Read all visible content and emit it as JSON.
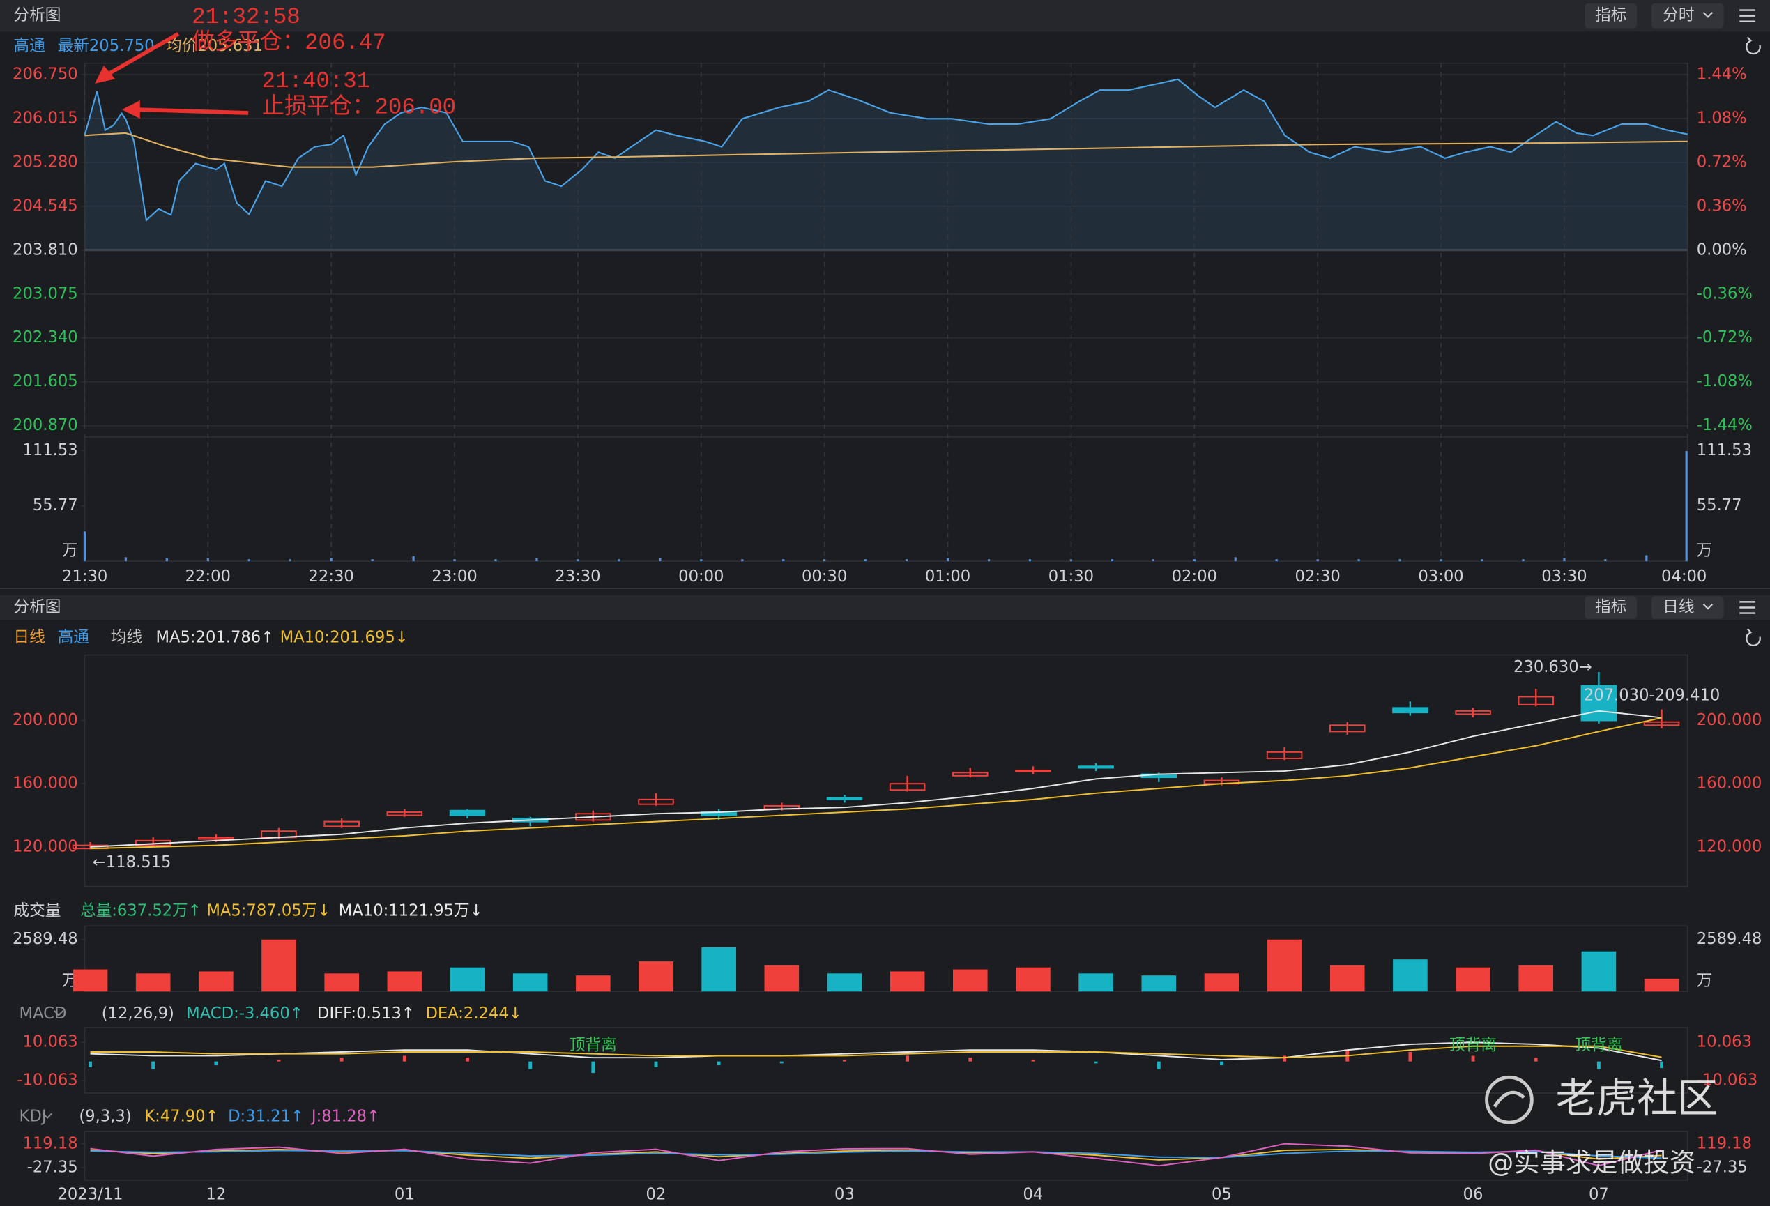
{
  "top_panel": {
    "title": "分析图",
    "buttons": [
      "指标",
      "分时"
    ],
    "legend": [
      {
        "text": "高通",
        "color": "#3d9be9"
      },
      {
        "text": "最新205.750",
        "color": "#3d9be9"
      },
      {
        "text": "均价205.631",
        "color": "#e0b062"
      }
    ],
    "annotations": [
      "21:32:58",
      "做多平仓：206.47",
      "21:40:31",
      "止损平仓：206.00"
    ]
  },
  "bottom_panel": {
    "title": "分析图",
    "buttons": [
      "指标",
      "日线"
    ],
    "legend": [
      {
        "text": "日线",
        "color": "#f0a030"
      },
      {
        "text": "高通",
        "color": "#3d9be9"
      },
      {
        "text": "均线",
        "color": "#c8c8c8"
      },
      {
        "text": "MA5:201.786↑",
        "color": "#e8e8e8"
      },
      {
        "text": "MA10:201.695↓",
        "color": "#f0c030"
      }
    ]
  },
  "watermark": {
    "brand": "老虎社区",
    "author": "@实事求是做投资"
  },
  "chart_data": [
    {
      "type": "line",
      "xlim": [
        0,
        390
      ],
      "xticks": [
        {
          "value": 0,
          "label": "21:30"
        },
        {
          "value": 30,
          "label": "22:00"
        },
        {
          "value": 60,
          "label": "22:30"
        },
        {
          "value": 90,
          "label": "23:00"
        },
        {
          "value": 120,
          "label": "23:30"
        },
        {
          "value": 150,
          "label": "00:00"
        },
        {
          "value": 180,
          "label": "00:30"
        },
        {
          "value": 210,
          "label": "01:00"
        },
        {
          "value": 240,
          "label": "01:30"
        },
        {
          "value": 270,
          "label": "02:00"
        },
        {
          "value": 300,
          "label": "02:30"
        },
        {
          "value": 330,
          "label": "03:00"
        },
        {
          "value": 360,
          "label": "03:30"
        },
        {
          "value": 390,
          "label": "04:00"
        }
      ],
      "ylim": [
        200.87,
        206.75
      ],
      "yticks": [
        {
          "value": 200.87,
          "label": "200.870"
        },
        {
          "value": 201.605,
          "label": "201.605"
        },
        {
          "value": 202.34,
          "label": "202.340"
        },
        {
          "value": 203.075,
          "label": "203.075"
        },
        {
          "value": 203.81,
          "label": "203.810"
        },
        {
          "value": 204.545,
          "label": "204.545"
        },
        {
          "value": 205.28,
          "label": "205.280"
        },
        {
          "value": 206.015,
          "label": "206.015"
        },
        {
          "value": 206.75,
          "label": "206.750"
        }
      ],
      "y2lim": [
        -1.44,
        1.44
      ],
      "y2ticks": [
        {
          "value": -1.44,
          "label": "-1.44%"
        },
        {
          "value": -1.08,
          "label": "-1.08%"
        },
        {
          "value": -0.72,
          "label": "-0.72%"
        },
        {
          "value": -0.36,
          "label": "-0.36%"
        },
        {
          "value": 0,
          "label": "0.00%"
        },
        {
          "value": 0.36,
          "label": "0.36%"
        },
        {
          "value": 0.72,
          "label": "0.72%"
        },
        {
          "value": 1.08,
          "label": "1.08%"
        },
        {
          "value": 1.44,
          "label": "1.44%"
        }
      ],
      "grid": true,
      "area": true,
      "series": [
        {
          "color": "#4aa3e8",
          "x": [
            0,
            3,
            5,
            7,
            9,
            10,
            12,
            15,
            18,
            21,
            23,
            27,
            32,
            34,
            37,
            40,
            44,
            48,
            52,
            56,
            60,
            63,
            66,
            69,
            73,
            77,
            82,
            88,
            92,
            98,
            104,
            108,
            112,
            116,
            121,
            125,
            129,
            133,
            139,
            144,
            151,
            155,
            160,
            169,
            176,
            181,
            188,
            196,
            205,
            211,
            220,
            227,
            235,
            242,
            247,
            254,
            260,
            266,
            271,
            275,
            282,
            287,
            292,
            298,
            303,
            309,
            317,
            325,
            331,
            336,
            342,
            347,
            353,
            358,
            363,
            367,
            374,
            380,
            385,
            390
          ],
          "values": [
            205.73,
            206.47,
            205.82,
            205.9,
            206.1,
            206.0,
            205.63,
            204.31,
            204.5,
            204.4,
            204.97,
            205.26,
            205.16,
            205.26,
            204.6,
            204.41,
            204.97,
            204.88,
            205.35,
            205.54,
            205.58,
            205.73,
            205.07,
            205.54,
            205.92,
            206.11,
            206.2,
            206.11,
            205.63,
            205.63,
            205.63,
            205.54,
            204.97,
            204.88,
            205.16,
            205.45,
            205.35,
            205.54,
            205.82,
            205.73,
            205.63,
            205.54,
            206.01,
            206.2,
            206.3,
            206.49,
            206.33,
            206.11,
            206.01,
            206.01,
            205.92,
            205.92,
            206.01,
            206.3,
            206.49,
            206.49,
            206.58,
            206.67,
            206.39,
            206.2,
            206.49,
            206.3,
            205.73,
            205.45,
            205.35,
            205.54,
            205.45,
            205.54,
            205.35,
            205.45,
            205.54,
            205.45,
            205.73,
            205.96,
            205.77,
            205.73,
            205.92,
            205.92,
            205.82,
            205.75
          ]
        },
        {
          "color": "#e0b062",
          "x": [
            0,
            10,
            20,
            30,
            50,
            70,
            90,
            110,
            130,
            160,
            200,
            250,
            300,
            350,
            390
          ],
          "values": [
            205.73,
            205.77,
            205.54,
            205.35,
            205.2,
            205.2,
            205.29,
            205.35,
            205.37,
            205.41,
            205.46,
            205.52,
            205.58,
            205.6,
            205.631
          ]
        }
      ]
    },
    {
      "type": "bar",
      "color": "#5b8fd6",
      "unit": "万",
      "xlim": [
        0,
        390
      ],
      "x": [
        0,
        10,
        20,
        30,
        40,
        50,
        60,
        70,
        80,
        90,
        100,
        110,
        120,
        130,
        140,
        150,
        160,
        170,
        180,
        190,
        200,
        210,
        220,
        230,
        240,
        250,
        260,
        270,
        280,
        290,
        300,
        310,
        320,
        330,
        340,
        350,
        360,
        370,
        380,
        390
      ],
      "values": [
        30,
        4,
        3,
        3,
        2,
        2,
        3,
        2,
        5,
        2,
        2,
        3,
        2,
        2,
        3,
        2,
        2,
        2,
        2,
        2,
        2,
        3,
        2,
        2,
        2,
        2,
        2,
        2,
        4,
        2,
        2,
        2,
        2,
        2,
        2,
        2,
        3,
        2,
        6,
        111
      ],
      "ylim": [
        0,
        119.5
      ],
      "yticks": [
        55.77,
        111.53
      ]
    },
    {
      "type": "candlestick",
      "categories": [
        "2023/11",
        null,
        "12",
        null,
        null,
        "01",
        null,
        null,
        null,
        "02",
        null,
        null,
        "03",
        null,
        null,
        "04",
        null,
        null,
        "05",
        null,
        null,
        null,
        "06",
        null,
        "07",
        null
      ],
      "open": [
        119,
        121,
        125,
        126,
        133,
        140,
        143,
        138,
        137,
        147,
        142,
        144,
        151,
        156,
        165,
        168,
        171,
        166,
        160,
        176,
        193,
        208,
        204,
        210,
        222,
        197
      ],
      "high": [
        123,
        126,
        128,
        132,
        138,
        144,
        144,
        139,
        143,
        154,
        144,
        148,
        153,
        165,
        170,
        171,
        173,
        167,
        164,
        183,
        199,
        212,
        208,
        220,
        230.63,
        207
      ],
      "low": [
        118.515,
        120,
        123,
        125,
        132,
        139,
        138,
        133,
        136,
        146,
        137,
        143,
        148,
        155,
        164,
        166,
        168,
        161,
        159,
        175,
        191,
        203,
        202,
        209,
        198,
        195
      ],
      "close": [
        121,
        124,
        126,
        130,
        136,
        142,
        140,
        136,
        141,
        150,
        140,
        146,
        150,
        160,
        167,
        168.5,
        170,
        164,
        162,
        180,
        197,
        205,
        206,
        215,
        200,
        199
      ],
      "up_color": "#f0403c",
      "down_color": "#17b3c4",
      "series": [
        {
          "color": "#e8e8e8",
          "values": [
            120,
            122,
            124,
            126,
            128,
            132,
            135,
            137,
            139,
            141,
            142,
            144,
            145,
            148,
            152,
            157,
            163,
            166,
            167,
            168,
            172,
            180,
            190,
            198,
            206,
            201.786
          ]
        },
        {
          "color": "#f0c030",
          "values": [
            119,
            120,
            121,
            123,
            125,
            127,
            130,
            132,
            134,
            136,
            138,
            140,
            142,
            144,
            147,
            150,
            154,
            157,
            160,
            162,
            165,
            170,
            177,
            184,
            193,
            201.695
          ]
        }
      ],
      "ylim": [
        95,
        234.3
      ],
      "yticks": [
        {
          "value": 120,
          "label": "120.000"
        },
        {
          "value": 160,
          "label": "160.000"
        },
        {
          "value": 200,
          "label": "200.000"
        }
      ],
      "high_label": "230.630→",
      "low_label": "←118.515",
      "range_label": "207.030-209.410"
    },
    {
      "type": "bar",
      "unit": "万",
      "legend": [
        {
          "text": "成交量",
          "color": "#cfd1d6"
        },
        {
          "text": "总量:637.52万↑",
          "color": "#2fc07a"
        },
        {
          "text": "MA5:787.05万↓",
          "color": "#f0c030"
        },
        {
          "text": "MA10:1121.95万↓",
          "color": "#e8e8e8"
        }
      ],
      "values": [
        1100,
        900,
        1000,
        2589,
        900,
        1000,
        1200,
        900,
        800,
        1500,
        2200,
        1300,
        900,
        1000,
        1100,
        1200,
        900,
        800,
        900,
        2589,
        1300,
        1600,
        1200,
        1300,
        2000,
        637.52
      ],
      "ylim": [
        0,
        3152
      ],
      "yticks": [
        2589.48
      ]
    },
    {
      "type": "macd",
      "legend": [
        {
          "text": "MACD",
          "color": "#8a8d94"
        },
        {
          "text": "(12,26,9)",
          "color": "#cfd1d6"
        },
        {
          "text": "MACD:-3.460↑",
          "color": "#2fc0b0"
        },
        {
          "text": "DIFF:0.513↑",
          "color": "#e8e8e8"
        },
        {
          "text": "DEA:2.244↓",
          "color": "#f0c030"
        }
      ],
      "values": [
        -3,
        -4,
        -2,
        1,
        2,
        3,
        2,
        -4,
        -6,
        -3,
        -2,
        -1,
        1,
        3,
        2,
        1,
        -1,
        -4,
        -2,
        3,
        6,
        5,
        3,
        2,
        -4,
        -3.46
      ],
      "series": [
        {
          "color": "#e8e8e8",
          "values": [
            4,
            3,
            3,
            4,
            5,
            6,
            6,
            4,
            2,
            2,
            3,
            3,
            4,
            5,
            6,
            6,
            5,
            3,
            1,
            2,
            6,
            9,
            10,
            9,
            7,
            0.513
          ]
        },
        {
          "color": "#f0c030",
          "values": [
            5,
            5,
            4,
            4,
            4,
            5,
            5,
            5,
            4,
            3,
            3,
            3,
            3,
            4,
            5,
            5,
            5,
            4,
            3,
            2,
            3,
            6,
            8,
            8,
            8,
            2.244
          ]
        }
      ],
      "annotations": [
        "顶背离",
        "顶背离",
        "顶背离"
      ],
      "ylim": [
        -16.57,
        16.57
      ],
      "yticks": [
        -10.063,
        10.063
      ]
    },
    {
      "type": "line",
      "legend": [
        {
          "text": "KDJ",
          "color": "#8a8d94"
        },
        {
          "text": "(9,3,3)",
          "color": "#cfd1d6"
        },
        {
          "text": "K:47.90↑",
          "color": "#f0c030"
        },
        {
          "text": "D:31.21↑",
          "color": "#3d9be9"
        },
        {
          "text": "J:81.28↑",
          "color": "#e060c0"
        }
      ],
      "series": [
        {
          "color": "#f0c030",
          "values": [
            80,
            60,
            75,
            85,
            70,
            80,
            50,
            30,
            55,
            70,
            40,
            60,
            75,
            80,
            65,
            70,
            50,
            20,
            35,
            80,
            85,
            70,
            65,
            75,
            25,
            47.9
          ]
        },
        {
          "color": "#3d9be9",
          "values": [
            75,
            68,
            70,
            78,
            75,
            77,
            62,
            45,
            50,
            62,
            52,
            55,
            68,
            75,
            70,
            70,
            60,
            38,
            35,
            60,
            75,
            73,
            68,
            72,
            45,
            31.21
          ]
        },
        {
          "color": "#e060c0",
          "values": [
            90,
            44,
            85,
            99,
            60,
            86,
            26,
            0,
            65,
            86,
            16,
            70,
            89,
            90,
            55,
            70,
            30,
            -16,
            35,
            120,
            105,
            64,
            59,
            81,
            -15,
            81.28
          ]
        }
      ],
      "ylim": [
        -104.1,
        188.96
      ],
      "yticks": [
        -27.35,
        119.18
      ]
    }
  ]
}
